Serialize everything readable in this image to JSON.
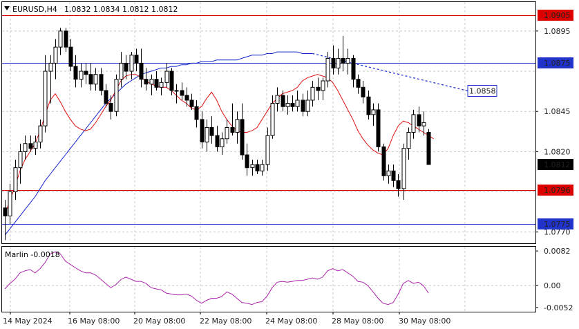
{
  "chart_header": {
    "symbol": "EURUSD,H4",
    "ohlc": "1.0832 1.0834 1.0812 1.0812"
  },
  "price_axis": {
    "ticks": [
      "1.0895",
      "1.0845",
      "1.0820",
      "1.0770"
    ],
    "ylim": [
      1.0763,
      1.0913
    ]
  },
  "levels": [
    {
      "label": "1.0905",
      "value": 1.0905,
      "color": "#dd0000",
      "style": "red-box"
    },
    {
      "label": "1.0875",
      "value": 1.0875,
      "color": "#2233cc",
      "style": "blue-box"
    },
    {
      "label": "1.0858",
      "value": 1.0858,
      "color": "#2233cc",
      "style": "outline-box"
    },
    {
      "label": "1.0812",
      "value": 1.0812,
      "color": "#000000",
      "style": "black-box"
    },
    {
      "label": "1.0796",
      "value": 1.0796,
      "color": "#dd0000",
      "style": "red-box"
    },
    {
      "label": "1.0775",
      "value": 1.0775,
      "color": "#2233cc",
      "style": "blue-box"
    }
  ],
  "time_axis": [
    "14 May 2024",
    "16 May 08:00",
    "20 May 08:00",
    "22 May 08:00",
    "24 May 08:00",
    "28 May 08:00",
    "30 May 08:00"
  ],
  "indicator": {
    "title": "Marlin -0.0018",
    "ticks": [
      "0.0082",
      "0.00",
      "-0.0052"
    ],
    "ylim": [
      -0.0062,
      0.0092
    ]
  },
  "colors": {
    "candle_up": "#ffffff",
    "candle_down": "#000000",
    "ma_fast": "#dd1111",
    "ma_slow": "#1122cc",
    "oscillator": "#aa22aa"
  },
  "chart_data": {
    "type": "candlestick",
    "candles": [
      [
        1.0785,
        1.079,
        1.0765,
        1.078
      ],
      [
        1.078,
        1.08,
        1.0775,
        1.0795
      ],
      [
        1.0795,
        1.0815,
        1.079,
        1.081
      ],
      [
        1.081,
        1.0825,
        1.08,
        1.082
      ],
      [
        1.082,
        1.083,
        1.0815,
        1.0825
      ],
      [
        1.0825,
        1.083,
        1.082,
        1.0822
      ],
      [
        1.0822,
        1.083,
        1.0818,
        1.0826
      ],
      [
        1.0826,
        1.084,
        1.0822,
        1.0836
      ],
      [
        1.0836,
        1.088,
        1.0832,
        1.087
      ],
      [
        1.087,
        1.088,
        1.085,
        1.0875
      ],
      [
        1.0875,
        1.089,
        1.0865,
        1.0885
      ],
      [
        1.0885,
        1.0897,
        1.088,
        1.0895
      ],
      [
        1.0895,
        1.0897,
        1.0882,
        1.0885
      ],
      [
        1.0885,
        1.089,
        1.087,
        1.0873
      ],
      [
        1.0873,
        1.088,
        1.086,
        1.0865
      ],
      [
        1.0865,
        1.0875,
        1.086,
        1.087
      ],
      [
        1.087,
        1.0875,
        1.0862,
        1.0868
      ],
      [
        1.0868,
        1.0875,
        1.0858,
        1.0862
      ],
      [
        1.0862,
        1.0872,
        1.0858,
        1.0868
      ],
      [
        1.0868,
        1.0872,
        1.0855,
        1.0858
      ],
      [
        1.0858,
        1.0862,
        1.0848,
        1.085
      ],
      [
        1.085,
        1.0855,
        1.084,
        1.0845
      ],
      [
        1.0845,
        1.0868,
        1.0842,
        1.0865
      ],
      [
        1.0865,
        1.0882,
        1.086,
        1.0875
      ],
      [
        1.0875,
        1.088,
        1.0865,
        1.087
      ],
      [
        1.087,
        1.0882,
        1.0865,
        1.088
      ],
      [
        1.088,
        1.0884,
        1.087,
        1.0875
      ],
      [
        1.0875,
        1.0884,
        1.086,
        1.0865
      ],
      [
        1.0865,
        1.0872,
        1.0858,
        1.0862
      ],
      [
        1.0862,
        1.0868,
        1.0855,
        1.0865
      ],
      [
        1.0865,
        1.087,
        1.0858,
        1.086
      ],
      [
        1.086,
        1.0866,
        1.0855,
        1.0863
      ],
      [
        1.0863,
        1.0875,
        1.086,
        1.087
      ],
      [
        1.087,
        1.0872,
        1.0855,
        1.0858
      ],
      [
        1.0858,
        1.0862,
        1.085,
        1.0858
      ],
      [
        1.0858,
        1.0863,
        1.0852,
        1.0855
      ],
      [
        1.0855,
        1.086,
        1.0848,
        1.0852
      ],
      [
        1.0852,
        1.0856,
        1.0846,
        1.0848
      ],
      [
        1.0848,
        1.0852,
        1.0835,
        1.084
      ],
      [
        1.084,
        1.0845,
        1.0822,
        1.0826
      ],
      [
        1.0826,
        1.084,
        1.082,
        1.0835
      ],
      [
        1.0835,
        1.0842,
        1.0825,
        1.083
      ],
      [
        1.083,
        1.0836,
        1.082,
        1.0823
      ],
      [
        1.0823,
        1.0832,
        1.0818,
        1.0828
      ],
      [
        1.0828,
        1.084,
        1.0825,
        1.0835
      ],
      [
        1.0835,
        1.085,
        1.083,
        1.0832
      ],
      [
        1.0832,
        1.0845,
        1.0825,
        1.084
      ],
      [
        1.084,
        1.085,
        1.0815,
        1.0818
      ],
      [
        1.0818,
        1.0825,
        1.0805,
        1.081
      ],
      [
        1.081,
        1.0815,
        1.0805,
        1.0812
      ],
      [
        1.0812,
        1.0815,
        1.0806,
        1.0808
      ],
      [
        1.0808,
        1.0815,
        1.0805,
        1.0812
      ],
      [
        1.0812,
        1.0835,
        1.0808,
        1.083
      ],
      [
        1.083,
        1.0855,
        1.0828,
        1.085
      ],
      [
        1.085,
        1.086,
        1.0845,
        1.0855
      ],
      [
        1.0855,
        1.0858,
        1.0845,
        1.0848
      ],
      [
        1.0848,
        1.0855,
        1.0843,
        1.085
      ],
      [
        1.085,
        1.0855,
        1.0845,
        1.0848
      ],
      [
        1.0848,
        1.0858,
        1.0845,
        1.0852
      ],
      [
        1.0852,
        1.0856,
        1.0842,
        1.0845
      ],
      [
        1.0845,
        1.0858,
        1.0842,
        1.0852
      ],
      [
        1.0852,
        1.0864,
        1.0848,
        1.086
      ],
      [
        1.086,
        1.0866,
        1.0852,
        1.0858
      ],
      [
        1.0858,
        1.0866,
        1.0852,
        1.0864
      ],
      [
        1.0864,
        1.0882,
        1.086,
        1.0878
      ],
      [
        1.0878,
        1.0886,
        1.0868,
        1.0872
      ],
      [
        1.0872,
        1.0884,
        1.0868,
        1.0878
      ],
      [
        1.0878,
        1.0892,
        1.087,
        1.0875
      ],
      [
        1.0875,
        1.0884,
        1.0868,
        1.0878
      ],
      [
        1.0878,
        1.088,
        1.086,
        1.0865
      ],
      [
        1.0865,
        1.0868,
        1.0856,
        1.086
      ],
      [
        1.086,
        1.0864,
        1.085,
        1.0854
      ],
      [
        1.0854,
        1.0858,
        1.084,
        1.0843
      ],
      [
        1.0843,
        1.085,
        1.0836,
        1.0846
      ],
      [
        1.0846,
        1.085,
        1.082,
        1.0823
      ],
      [
        1.0823,
        1.0825,
        1.0802,
        1.0805
      ],
      [
        1.0805,
        1.0812,
        1.08,
        1.0808
      ],
      [
        1.0808,
        1.0812,
        1.0798,
        1.0802
      ],
      [
        1.0802,
        1.0806,
        1.0792,
        1.0797
      ],
      [
        1.0797,
        1.0825,
        1.079,
        1.0822
      ],
      [
        1.0822,
        1.0835,
        1.0815,
        1.0832
      ],
      [
        1.0832,
        1.0846,
        1.0828,
        1.0843
      ],
      [
        1.0843,
        1.0848,
        1.0832,
        1.0836
      ],
      [
        1.0836,
        1.0845,
        1.083,
        1.0838
      ],
      [
        1.0832,
        1.0834,
        1.0812,
        1.0812
      ]
    ],
    "ma_fast": [
      1.078,
      1.079,
      1.0798,
      1.0808,
      1.0815,
      1.082,
      1.0825,
      1.0833,
      1.0843,
      1.0852,
      1.0856,
      1.0851,
      1.0845,
      1.084,
      1.0836,
      1.0834,
      1.0833,
      1.0834,
      1.0838,
      1.0843,
      1.0848,
      1.0852,
      1.0858,
      1.0864,
      1.0867,
      1.0868,
      1.0868,
      1.0866,
      1.0864,
      1.0862,
      1.0861,
      1.086,
      1.086,
      1.0858,
      1.0855,
      1.0852,
      1.085,
      1.0847,
      1.0846,
      1.0848,
      1.0853,
      1.0857,
      1.0852,
      1.0845,
      1.084,
      1.0836,
      1.0833,
      1.0832,
      1.0832,
      1.0833,
      1.0835,
      1.084,
      1.0845,
      1.085,
      1.0853,
      1.0856,
      1.0857,
      1.0858,
      1.086,
      1.0864,
      1.0866,
      1.0867,
      1.0868,
      1.0867,
      1.0866,
      1.0863,
      1.0858,
      1.0852,
      1.0846,
      1.084,
      1.0833,
      1.0828,
      1.0824,
      1.0821,
      1.0819,
      1.0818,
      1.0822,
      1.083,
      1.0836,
      1.0839,
      1.0838,
      1.0836,
      1.0834,
      1.0832,
      1.083,
      1.0828
    ],
    "ma_slow": [
      1.0768,
      1.0772,
      1.0776,
      1.078,
      1.0784,
      1.0788,
      1.0792,
      1.0797,
      1.0802,
      1.0806,
      1.081,
      1.0814,
      1.0818,
      1.0822,
      1.0826,
      1.083,
      1.0834,
      1.0838,
      1.0842,
      1.0846,
      1.085,
      1.0853,
      1.0856,
      1.0859,
      1.0862,
      1.0864,
      1.0866,
      1.0868,
      1.0869,
      1.087,
      1.0871,
      1.0872,
      1.0872,
      1.0873,
      1.0873,
      1.0874,
      1.0874,
      1.0875,
      1.0875,
      1.0876,
      1.0876,
      1.0876,
      1.0877,
      1.0877,
      1.0877,
      1.0877,
      1.0877,
      1.0878,
      1.0879,
      1.088,
      1.088,
      1.088,
      1.0881,
      1.0881,
      1.0882,
      1.0882,
      1.0882,
      1.0882,
      1.0882,
      1.0881,
      1.0881,
      1.0881,
      1.0881,
      1.0881,
      1.088,
      1.0879,
      1.0878,
      1.0876,
      1.0874,
      1.0872,
      1.087,
      1.0868,
      1.0866,
      1.0864,
      1.0862,
      1.0861,
      1.086,
      1.086,
      1.0859,
      1.0858,
      1.0858,
      1.0858,
      1.0857,
      1.0857,
      1.0857,
      1.0857
    ],
    "ma_slow_solid_count": 62,
    "oscillator": [
      -0.0008,
      0.0005,
      0.0015,
      0.003,
      0.0035,
      0.0038,
      0.003,
      0.004,
      0.0055,
      0.0075,
      0.008,
      0.0075,
      0.0058,
      0.005,
      0.0042,
      0.0035,
      0.003,
      0.003,
      0.0025,
      0.0015,
      0.0005,
      -0.0005,
      0.0002,
      0.0014,
      0.002,
      0.0015,
      0.001,
      0.001,
      0.0005,
      -0.0005,
      -0.0008,
      -0.001,
      -0.0018,
      -0.002,
      -0.0022,
      -0.0022,
      -0.002,
      -0.0025,
      -0.0035,
      -0.0042,
      -0.0035,
      -0.003,
      -0.003,
      -0.0026,
      -0.0015,
      -0.002,
      -0.003,
      -0.004,
      -0.0042,
      -0.0045,
      -0.004,
      -0.0038,
      -0.0025,
      -0.0005,
      0.0008,
      0.001,
      0.0008,
      0.001,
      0.0012,
      0.0012,
      0.0015,
      0.0018,
      0.0015,
      0.002,
      0.0035,
      0.004,
      0.0035,
      0.0038,
      0.003,
      0.0022,
      0.001,
      0.0008,
      0.0,
      -0.0015,
      -0.003,
      -0.0042,
      -0.0045,
      -0.004,
      -0.002,
      0.0005,
      0.0012,
      0.0005,
      0.0008,
      0.0,
      -0.0018
    ]
  }
}
